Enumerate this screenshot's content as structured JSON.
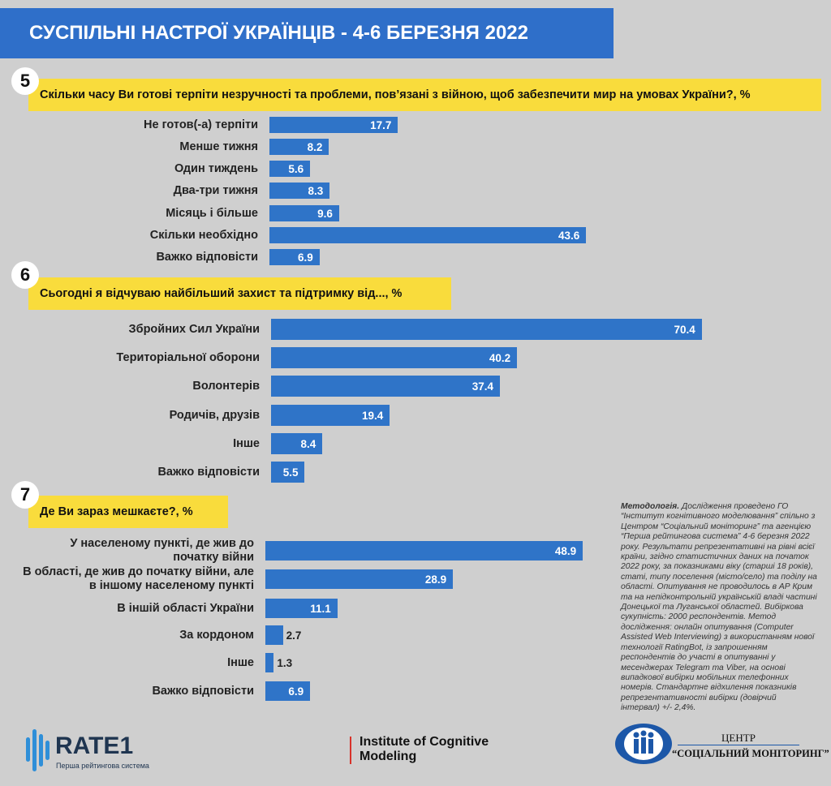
{
  "title": "СУСПІЛЬНІ НАСТРОЇ УКРАЇНЦІВ - 4-6 БЕРЕЗНЯ 2022",
  "chart_data": [
    {
      "type": "bar",
      "number": "5",
      "title": "Скільки часу Ви готові терпіти незручності та проблеми, пов’язані з війною, щоб забезпечити мир на умовах України?, %",
      "categories": [
        "Не готов(-а) терпіти",
        "Менше тижня",
        "Один тиждень",
        "Два-три тижня",
        "Місяць і більше",
        "Скільки необхідно",
        "Важко відповісти"
      ],
      "values": [
        17.7,
        8.2,
        5.6,
        8.3,
        9.6,
        43.6,
        6.9
      ],
      "color": "#2f74c8"
    },
    {
      "type": "bar",
      "number": "6",
      "title": "Сьогодні я відчуваю найбільший захист та підтримку від..., %",
      "categories": [
        "Збройних Сил України",
        "Територіальної оборони",
        "Волонтерів",
        "Родичів, друзів",
        "Інше",
        "Важко відповісти"
      ],
      "values": [
        70.4,
        40.2,
        37.4,
        19.4,
        8.4,
        5.5
      ],
      "color": "#2f74c8"
    },
    {
      "type": "bar",
      "number": "7",
      "title": "Де Ви зараз мешкаєте?, %",
      "categories": [
        "У населеному пункті, де жив до початку війни",
        "В області, де жив до початку війни, але в іншому населеному пункті",
        "В іншій області України",
        "За кордоном",
        "Інше",
        "Важко відповісти"
      ],
      "values": [
        48.9,
        28.9,
        11.1,
        2.7,
        1.3,
        6.9
      ],
      "color": "#2f74c8"
    }
  ],
  "methodology": {
    "label": "Методологія.",
    "text": "Дослідження проведено ГО “Інститут когнітивного моделювання” спільно з Центром “Соціальний моніторинг” та агенцією “Перша рейтингова система” 4-6 березня 2022 року. Результати репрезентативні на рівні всієї країни, згідно статистичних даних на початок 2022 року, за показниками віку (старші 18 років), статі, типу поселення (місто/село) та поділу на області. Опитування не проводилось в АР Крим та на непідконтрольній українській владі частині Донецької та Луганської областей. Вибіркова сукупність: 2000 респондентів. Метод дослідження: онлайн опитування (Computer Assisted Web Interviewing) з використанням нової технології RatingBot, із запрошенням респондентів до участі в опитуванні у месенджерах Telegram та Viber, на основі випадкової вибірки мобільних телефонних номерів. Стандартне відхилення показників репрезентативності вибірки (довірчий інтервал) +/- 2,4%."
  },
  "logos": {
    "rate1": "RATE1",
    "rate1_sub": "Перша рейтингова система",
    "icm": "Institute of Cognitive Modeling",
    "csm_1": "ЦЕНТР",
    "csm_2": "“СОЦІАЛЬНИЙ МОНІТОРИНГ”"
  }
}
